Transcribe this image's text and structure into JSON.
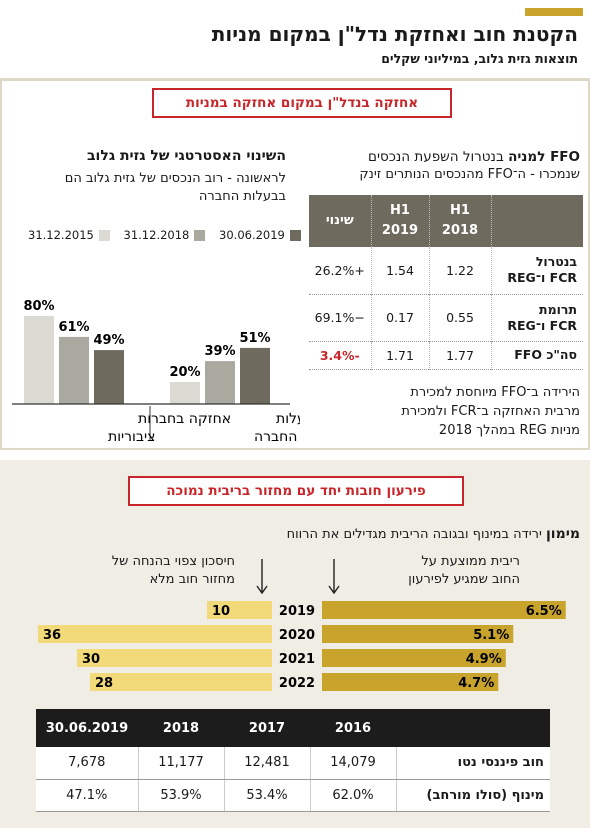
{
  "title": "הקטנת חוב ואחזקת נדל\"ן במקום מניות",
  "subtitle": "תוצאות גזית גלוב, במיליוני שקלים",
  "section1": {
    "label": "אחזקה בנדל\"ן במקום אחזקה במניות"
  },
  "section2": {
    "label": "פירעון חובות יחד עם מחזור בריבית נמוכה"
  },
  "strategy": {
    "title": "השינוי האסטרטגי של גזית גלוב",
    "body_line1": "לראשונה - רוב הנכסים של גזית גלוב הם",
    "body_line2": "בבעלות החברה"
  },
  "ffo": {
    "head_line1_bold": "FFO למניה",
    "head_line1_rest": " בנטרול השפעת הנכסים",
    "head_line2": "שנמכרו - ה־FFO מהנכסים הנותרים זינק",
    "columns": [
      "H1 2018",
      "H1 2019",
      "שינוי"
    ],
    "col_h1": "H1",
    "col_2018": "2018",
    "col_2019": "2019",
    "rows": [
      {
        "label_l1": "בנטרול",
        "label_l2": "FCR ו־REG",
        "v2018": "1.22",
        "v2019": "1.54",
        "change": "+26.2%"
      },
      {
        "label_l1": "תרומת",
        "label_l2": "FCR ו־REG",
        "v2018": "0.55",
        "v2019": "0.17",
        "change": "−69.1%"
      },
      {
        "label_l1": "סה\"כ FFO",
        "label_l2": "",
        "v2018": "1.77",
        "v2019": "1.71",
        "change": "-3.4%"
      }
    ],
    "note_l1": "הירידה ב־FFO מיוחסת למכירת",
    "note_l2": "מרבית האחזקה ב־FCR ולמכירת",
    "note_l3": "מניות REG במהלך 2018"
  },
  "colors": {
    "d2015": "#dcdbd3",
    "d2018": "#a9a9a0",
    "d2019": "#6e6a5e",
    "gold": "#c8a42c",
    "red": "#c8262a",
    "light_gold": "#f2d97a"
  },
  "mimun": {
    "bold": "מימון",
    "rest": " ירידה במינוף ובגובה הריבית מגדילים את הרווח"
  },
  "arrow_left": {
    "l1": "חיסכון צפוי בהנחה של",
    "l2": "מחזור חוב מלא"
  },
  "arrow_right": {
    "l1": "ריבית ממוצעת על",
    "l2": "החוב שמגיע לפירעון"
  },
  "chart_data": [
    {
      "type": "bar",
      "legend": [
        "30.06.2019",
        "31.12.2018",
        "31.12.2015"
      ],
      "categories": [
        "אחזקה בחברות ציבוריות",
        "נדל\"ן בבעלות החברה"
      ],
      "series": [
        {
          "name": "31.12.2015",
          "values": [
            80,
            20
          ],
          "labels": [
            "80%",
            "20%"
          ]
        },
        {
          "name": "31.12.2018",
          "values": [
            61,
            39
          ],
          "labels": [
            "61%",
            "39%"
          ]
        },
        {
          "name": "30.06.2019",
          "values": [
            49,
            51
          ],
          "labels": [
            "49%",
            "51%"
          ]
        }
      ],
      "ylim": [
        0,
        100
      ]
    },
    {
      "type": "bar",
      "orientation": "horizontal",
      "categories": [
        "2019",
        "2020",
        "2021",
        "2022"
      ],
      "series": [
        {
          "values": [
            6.5,
            5.1,
            4.9,
            4.7
          ],
          "labels": [
            "6.5%",
            "5.1%",
            "4.9%",
            "4.7%"
          ]
        },
        {
          "values": [
            10,
            36,
            30,
            28
          ],
          "labels": [
            "10",
            "36",
            "30",
            "28"
          ]
        }
      ]
    }
  ],
  "table": {
    "headers": [
      "2016",
      "2017",
      "2018",
      "30.06.2019"
    ],
    "rows": [
      {
        "label": "חוב פיננסי נטו",
        "values": [
          "14,079",
          "12,481",
          "11,177",
          "7,678"
        ]
      },
      {
        "label": "מינוף (סולו מורחב)",
        "values": [
          "62.0%",
          "53.4%",
          "53.9%",
          "47.1%"
        ]
      }
    ]
  }
}
